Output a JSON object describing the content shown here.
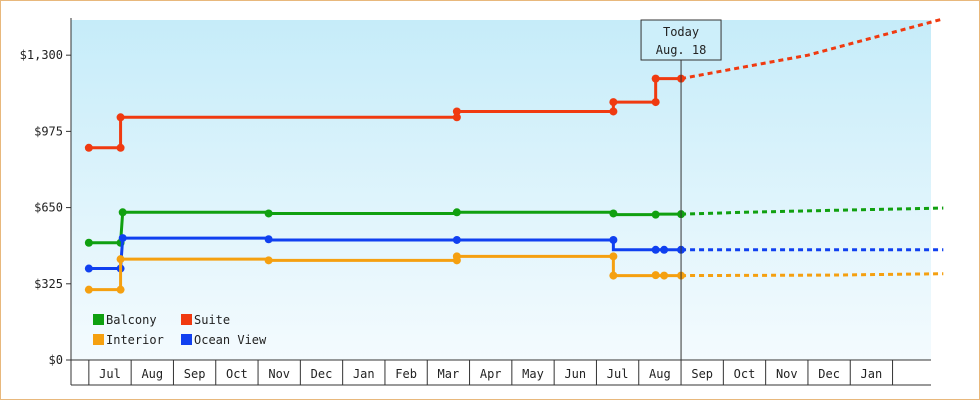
{
  "chart_data": {
    "type": "line",
    "y_ticks": [
      0,
      325,
      650,
      975,
      1300
    ],
    "y_tick_labels": [
      "$0",
      "$325",
      "$650",
      "$975",
      "$1,300"
    ],
    "ylim": [
      0,
      1450
    ],
    "x_months": [
      "Jul",
      "Aug",
      "Sep",
      "Oct",
      "Nov",
      "Dec",
      "Jan",
      "Feb",
      "Mar",
      "Apr",
      "May",
      "Jun",
      "Jul",
      "Aug",
      "Sep",
      "Oct",
      "Nov",
      "Dec",
      "Jan"
    ],
    "today": {
      "label_line1": "Today",
      "label_line2": "Aug. 18",
      "x_index": 13.5
    },
    "legend": [
      {
        "name": "Balcony",
        "color": "#10a010"
      },
      {
        "name": "Suite",
        "color": "#f03a10"
      },
      {
        "name": "Interior",
        "color": "#f5a010"
      },
      {
        "name": "Ocean View",
        "color": "#1040f0"
      }
    ],
    "series": [
      {
        "name": "Suite",
        "color": "#f03a10",
        "step": [
          [
            -0.5,
            905
          ],
          [
            0.25,
            905
          ],
          [
            0.25,
            1035
          ],
          [
            8.2,
            1035
          ],
          [
            8.2,
            1060
          ],
          [
            11.9,
            1060
          ],
          [
            11.9,
            1100
          ],
          [
            12.9,
            1100
          ],
          [
            12.9,
            1200
          ],
          [
            13.5,
            1200
          ]
        ],
        "points": [
          [
            -0.5,
            905
          ],
          [
            0.25,
            905
          ],
          [
            0.25,
            1035
          ],
          [
            8.2,
            1035
          ],
          [
            8.2,
            1060
          ],
          [
            11.9,
            1060
          ],
          [
            11.9,
            1100
          ],
          [
            12.9,
            1100
          ],
          [
            12.9,
            1200
          ],
          [
            13.5,
            1200
          ]
        ],
        "forecast": [
          [
            13.5,
            1200
          ],
          [
            16.5,
            1300
          ],
          [
            19.7,
            1455
          ]
        ]
      },
      {
        "name": "Balcony",
        "color": "#10a010",
        "step": [
          [
            -0.5,
            500
          ],
          [
            0.25,
            500
          ],
          [
            0.3,
            630
          ],
          [
            3.75,
            630
          ],
          [
            3.75,
            625
          ],
          [
            8.2,
            625
          ],
          [
            8.2,
            630
          ],
          [
            11.9,
            630
          ],
          [
            11.9,
            620
          ],
          [
            12.9,
            620
          ],
          [
            12.9,
            622
          ],
          [
            13.5,
            622
          ]
        ],
        "points": [
          [
            -0.5,
            500
          ],
          [
            0.25,
            500
          ],
          [
            0.3,
            630
          ],
          [
            3.75,
            625
          ],
          [
            8.2,
            630
          ],
          [
            11.9,
            625
          ],
          [
            12.9,
            620
          ],
          [
            13.5,
            622
          ]
        ],
        "forecast": [
          [
            13.5,
            622
          ],
          [
            15,
            630
          ],
          [
            17,
            638
          ],
          [
            19.7,
            648
          ]
        ]
      },
      {
        "name": "Ocean View",
        "color": "#1040f0",
        "step": [
          [
            -0.5,
            390
          ],
          [
            0.25,
            390
          ],
          [
            0.3,
            520
          ],
          [
            3.75,
            520
          ],
          [
            3.75,
            512
          ],
          [
            8.2,
            512
          ],
          [
            8.2,
            512
          ],
          [
            11.9,
            512
          ],
          [
            11.9,
            470
          ],
          [
            13.5,
            470
          ]
        ],
        "points": [
          [
            -0.5,
            390
          ],
          [
            0.25,
            390
          ],
          [
            0.3,
            520
          ],
          [
            3.75,
            515
          ],
          [
            8.2,
            512
          ],
          [
            11.9,
            512
          ],
          [
            12.9,
            470
          ],
          [
            13.1,
            470
          ],
          [
            13.5,
            470
          ]
        ],
        "forecast": [
          [
            13.5,
            470
          ],
          [
            19.7,
            470
          ]
        ]
      },
      {
        "name": "Interior",
        "color": "#f5a010",
        "step": [
          [
            -0.5,
            300
          ],
          [
            0.25,
            300
          ],
          [
            0.25,
            430
          ],
          [
            3.75,
            430
          ],
          [
            3.75,
            425
          ],
          [
            8.2,
            425
          ],
          [
            8.2,
            442
          ],
          [
            11.9,
            442
          ],
          [
            11.9,
            360
          ],
          [
            13.5,
            360
          ]
        ],
        "points": [
          [
            -0.5,
            300
          ],
          [
            0.25,
            300
          ],
          [
            0.25,
            430
          ],
          [
            3.75,
            425
          ],
          [
            8.2,
            425
          ],
          [
            8.2,
            442
          ],
          [
            11.9,
            442
          ],
          [
            11.9,
            360
          ],
          [
            12.9,
            362
          ],
          [
            13.1,
            360
          ],
          [
            13.5,
            360
          ]
        ],
        "forecast": [
          [
            13.5,
            360
          ],
          [
            17,
            362
          ],
          [
            19.7,
            368
          ]
        ]
      }
    ]
  }
}
